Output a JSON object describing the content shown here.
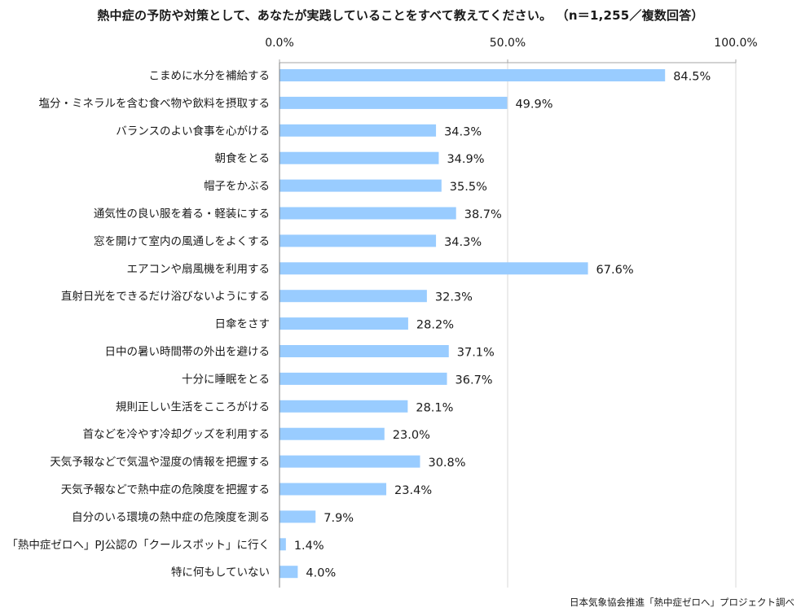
{
  "chart_data": {
    "type": "bar",
    "orientation": "horizontal",
    "title": "熱中症の予防や対策として、あなたが実践していることをすべて教えてください。 （n＝1,255／複数回答）",
    "xlim": [
      0,
      100
    ],
    "xticks": [
      "0.0%",
      "50.0%",
      "100.0%"
    ],
    "xtick_values": [
      0,
      50,
      100
    ],
    "bar_color": "#99ccff",
    "categories": [
      "こまめに水分を補給する",
      "塩分・ミネラルを含む食べ物や飲料を摂取する",
      "バランスのよい食事を心がける",
      "朝食をとる",
      "帽子をかぶる",
      "通気性の良い服を着る・軽装にする",
      "窓を開けて室内の風通しをよくする",
      "エアコンや扇風機を利用する",
      "直射日光をできるだけ浴びないようにする",
      "日傘をさす",
      "日中の暑い時間帯の外出を避ける",
      "十分に睡眠をとる",
      "規則正しい生活をこころがける",
      "首などを冷やす冷却グッズを利用する",
      "天気予報などで気温や湿度の情報を把握する",
      "天気予報などで熱中症の危険度を把握する",
      "自分のいる環境の熱中症の危険度を測る",
      "「熱中症ゼロへ」PJ公認の「クールスポット」に行く",
      "特に何もしていない"
    ],
    "values": [
      84.5,
      49.9,
      34.3,
      34.9,
      35.5,
      38.7,
      34.3,
      67.6,
      32.3,
      28.2,
      37.1,
      36.7,
      28.1,
      23.0,
      30.8,
      23.4,
      7.9,
      1.4,
      4.0
    ],
    "value_labels": [
      "84.5%",
      "49.9%",
      "34.3%",
      "34.9%",
      "35.5%",
      "38.7%",
      "34.3%",
      "67.6%",
      "32.3%",
      "28.2%",
      "37.1%",
      "36.7%",
      "28.1%",
      "23.0%",
      "30.8%",
      "23.4%",
      "7.9%",
      "1.4%",
      "4.0%"
    ],
    "source": "日本気象協会推進「熱中症ゼロへ」プロジェクト調べ"
  }
}
